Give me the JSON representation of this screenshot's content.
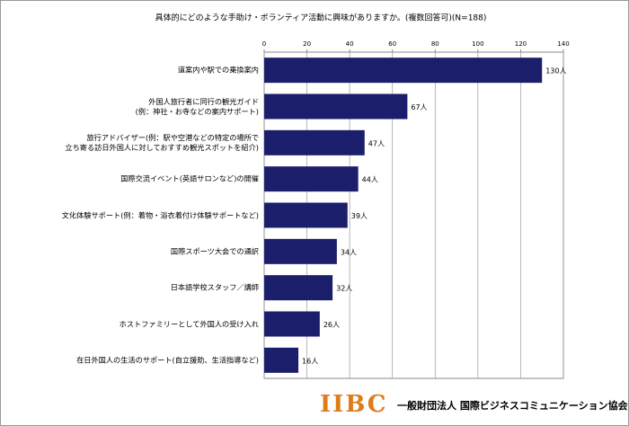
{
  "chart_data": {
    "type": "bar",
    "orientation": "horizontal",
    "title": "具体的にどのような手助け・ボランティア活動に興味がありますか。(複数回答可)(N=188)",
    "categories": [
      "道案内や駅での乗換案内",
      "外国人旅行者に同行の観光ガイド\n(例：神社・お寺などの案内サポート)",
      "旅行アドバイザー(例：駅や空港などの特定の場所で\n立ち寄る訪日外国人に対しておすすめ観光スポットを紹介)",
      "国際交流イベント(英語サロンなど)の開催",
      "文化体験サポート(例：着物・浴衣着付け体験サポートなど)",
      "国際スポーツ大会での通訳",
      "日本語学校スタッフ／講師",
      "ホストファミリーとして外国人の受け入れ",
      "在日外国人の生活のサポート(自立援助、生活指導など)"
    ],
    "values": [
      130,
      67,
      47,
      44,
      39,
      34,
      32,
      26,
      16
    ],
    "value_labels": [
      "130人",
      "67人",
      "47人",
      "44人",
      "39人",
      "34人",
      "32人",
      "26人",
      "16人"
    ],
    "color": "#1b1f6b",
    "xlim": [
      0,
      140
    ],
    "xticks": [
      0,
      20,
      40,
      60,
      80,
      100,
      120,
      140
    ],
    "grid": true
  },
  "footer": {
    "logo": "IIBC",
    "organization": "一般財団法人 国際ビジネスコミュニケーション協会"
  }
}
